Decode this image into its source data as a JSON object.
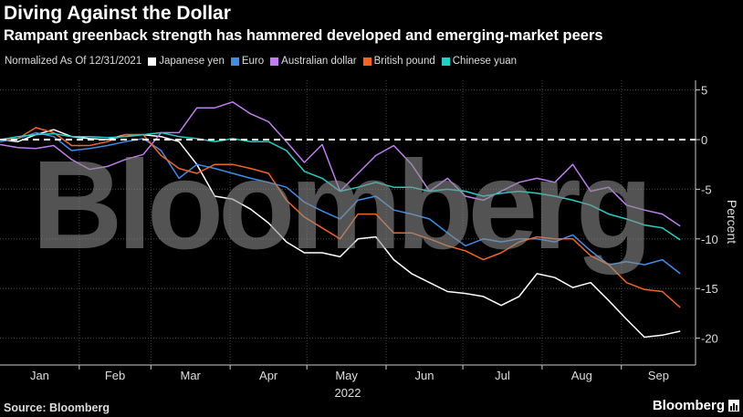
{
  "header": {
    "title": "Diving Against the Dollar",
    "subtitle": "Rampant greenback strength has hammered developed and emerging-market peers"
  },
  "footer": {
    "source": "Source: Bloomberg",
    "brand": "Bloomberg"
  },
  "chart_data": {
    "type": "line",
    "title": "Diving Against the Dollar",
    "subtitle": "Rampant greenback strength has hammered developed and emerging-market peers",
    "legend_note": "Normalized As Of 12/31/2021",
    "legend_placement": "top-left",
    "ylabel": "Percent",
    "xlabel": "2022",
    "ylim": [
      -22,
      6
    ],
    "yticks": [
      5,
      0,
      -5,
      -10,
      -15,
      -20
    ],
    "xticks": [
      "Jan",
      "Feb",
      "Mar",
      "Apr",
      "May",
      "Jun",
      "Jul",
      "Aug",
      "Sep"
    ],
    "xlim": [
      "2022-01-01",
      "2022-09-30"
    ],
    "grid": true,
    "reference_line": 0,
    "watermark": "Bloomberg",
    "x": [
      "2022-01-01",
      "2022-01-08",
      "2022-01-15",
      "2022-01-22",
      "2022-01-29",
      "2022-02-05",
      "2022-02-12",
      "2022-02-19",
      "2022-02-26",
      "2022-03-05",
      "2022-03-12",
      "2022-03-19",
      "2022-03-26",
      "2022-04-02",
      "2022-04-09",
      "2022-04-16",
      "2022-04-23",
      "2022-04-30",
      "2022-05-07",
      "2022-05-14",
      "2022-05-21",
      "2022-05-28",
      "2022-06-04",
      "2022-06-11",
      "2022-06-18",
      "2022-06-25",
      "2022-07-02",
      "2022-07-09",
      "2022-07-16",
      "2022-07-23",
      "2022-07-30",
      "2022-08-06",
      "2022-08-13",
      "2022-08-20",
      "2022-08-27",
      "2022-09-03",
      "2022-09-10",
      "2022-09-17",
      "2022-09-24"
    ],
    "series": [
      {
        "name": "Japanese yen",
        "color": "#ffffff",
        "values": [
          0,
          -0.2,
          0.5,
          1,
          0.3,
          0.1,
          0,
          0.5,
          0.5,
          0.3,
          -0.2,
          -2.5,
          -5.7,
          -6,
          -7,
          -8.4,
          -10.3,
          -11.4,
          -11.4,
          -11.8,
          -10,
          -9.8,
          -12.1,
          -13.5,
          -14.4,
          -15.3,
          -15.5,
          -15.8,
          -16.7,
          -15.8,
          -13.5,
          -13.9,
          -14.9,
          -14.4,
          -16.2,
          -18.1,
          -19.9,
          -19.7,
          -19.3
        ]
      },
      {
        "name": "Euro",
        "color": "#3b8fe8",
        "values": [
          -0.2,
          0.1,
          0.7,
          0.3,
          -1.1,
          -0.9,
          -0.6,
          -0.2,
          0.1,
          -1.1,
          -3.9,
          -2.5,
          -2.9,
          -3.4,
          -3.9,
          -4.3,
          -4.8,
          -6.3,
          -7.2,
          -8,
          -6.1,
          -5.7,
          -7.1,
          -7.5,
          -8,
          -9.4,
          -10.7,
          -10,
          -10.3,
          -10,
          -10,
          -10.3,
          -9.6,
          -11.2,
          -12.6,
          -12.3,
          -12.6,
          -12.1,
          -13.5
        ]
      },
      {
        "name": "Australian dollar",
        "color": "#c07ef0",
        "values": [
          -0.5,
          -0.8,
          -0.9,
          -0.6,
          -2,
          -3,
          -2.7,
          -2,
          -1.5,
          0.7,
          0.7,
          3.2,
          3.2,
          3.8,
          2.6,
          1.8,
          -0.2,
          -2.3,
          -0.5,
          -5.2,
          -3.4,
          -1.6,
          -0.6,
          -2.5,
          -5.2,
          -3.9,
          -5.7,
          -6.1,
          -5.2,
          -4.3,
          -3.9,
          -4.3,
          -2.5,
          -5.2,
          -4.8,
          -6.6,
          -7.1,
          -7.5,
          -8.7
        ]
      },
      {
        "name": "British pound",
        "color": "#f26522",
        "values": [
          0,
          0.1,
          1.2,
          0.7,
          -0.6,
          -0.6,
          -0.2,
          0.5,
          0.5,
          -1.6,
          -2.9,
          -3.4,
          -2.5,
          -2.5,
          -2.9,
          -3.4,
          -6.1,
          -7.8,
          -8.9,
          -10,
          -7.5,
          -7.5,
          -9.4,
          -9.4,
          -10,
          -10.7,
          -11.2,
          -12.1,
          -11.4,
          -10.3,
          -9.8,
          -10,
          -10,
          -11.7,
          -12.6,
          -14.4,
          -15.1,
          -15.3,
          -16.9
        ]
      },
      {
        "name": "Chinese yuan",
        "color": "#1fd1c4",
        "values": [
          0,
          0.3,
          0.5,
          0.6,
          0.3,
          0.3,
          0.2,
          0.3,
          0.5,
          0.7,
          0.3,
          0.1,
          -0.2,
          0.1,
          -0.2,
          -0.2,
          -1.1,
          -3.2,
          -3.9,
          -5.2,
          -4.8,
          -4.3,
          -4.8,
          -4.8,
          -5.2,
          -5,
          -5.2,
          -5.7,
          -5.4,
          -5.2,
          -5.4,
          -5.7,
          -6.1,
          -6.6,
          -7.5,
          -8,
          -8.6,
          -8.9,
          -10.1
        ]
      }
    ]
  }
}
